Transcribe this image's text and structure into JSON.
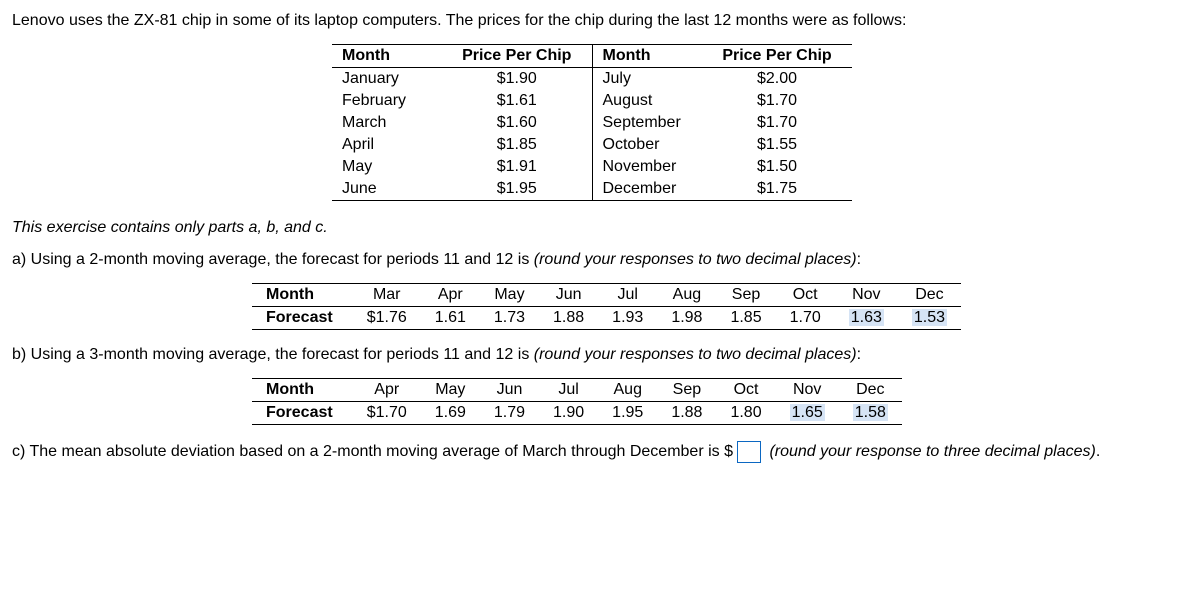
{
  "intro": "Lenovo uses the ZX-81 chip in some of its laptop computers. The prices for the chip during the last 12 months were as follows:",
  "priceTable": {
    "headers": [
      "Month",
      "Price Per Chip",
      "Month",
      "Price Per Chip"
    ],
    "rows": [
      [
        "January",
        "$1.90",
        "July",
        "$2.00"
      ],
      [
        "February",
        "$1.61",
        "August",
        "$1.70"
      ],
      [
        "March",
        "$1.60",
        "September",
        "$1.70"
      ],
      [
        "April",
        "$1.85",
        "October",
        "$1.55"
      ],
      [
        "May",
        "$1.91",
        "November",
        "$1.50"
      ],
      [
        "June",
        "$1.95",
        "December",
        "$1.75"
      ]
    ]
  },
  "partsNote": "This exercise contains only parts a, b, and c.",
  "partA": {
    "prompt_before": "a) Using a 2-month moving average, the forecast for periods 11 and 12 is ",
    "prompt_italic": "(round your responses to two decimal places)",
    "prompt_after": ":",
    "header_label": "Month",
    "row_label": "Forecast",
    "months": [
      "Mar",
      "Apr",
      "May",
      "Jun",
      "Jul",
      "Aug",
      "Sep",
      "Oct",
      "Nov",
      "Dec"
    ],
    "values": [
      "$1.76",
      "1.61",
      "1.73",
      "1.88",
      "1.93",
      "1.98",
      "1.85",
      "1.70",
      "1.63",
      "1.53"
    ],
    "highlight_idx": [
      8,
      9
    ]
  },
  "partB": {
    "prompt_before": "b) Using a 3-month moving average, the forecast for periods 11 and 12 is ",
    "prompt_italic": "(round your responses to two decimal places)",
    "prompt_after": ":",
    "header_label": "Month",
    "row_label": "Forecast",
    "months": [
      "Apr",
      "May",
      "Jun",
      "Jul",
      "Aug",
      "Sep",
      "Oct",
      "Nov",
      "Dec"
    ],
    "values": [
      "$1.70",
      "1.69",
      "1.79",
      "1.90",
      "1.95",
      "1.88",
      "1.80",
      "1.65",
      "1.58"
    ],
    "highlight_idx": [
      7,
      8
    ]
  },
  "partC": {
    "before_box": "c) The mean absolute deviation based on a 2-month moving average of March through December is $",
    "after_box_italic": "(round your response to three decimal places)",
    "period": "."
  }
}
